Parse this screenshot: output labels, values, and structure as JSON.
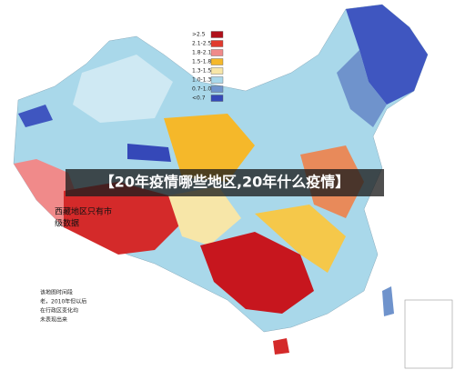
{
  "legend": {
    "items": [
      {
        "label": ">2.5",
        "color": "#b0101a"
      },
      {
        "label": "2.1-2.5",
        "color": "#e03a2e"
      },
      {
        "label": "1.8-2.1",
        "color": "#f08a8a"
      },
      {
        "label": "1.5-1.8",
        "color": "#f5b82a"
      },
      {
        "label": "1.3-1.5",
        "color": "#f7e6a8"
      },
      {
        "label": "1.0-1.3",
        "color": "#a9d8ea"
      },
      {
        "label": "0.7-1.0",
        "color": "#6f93cc"
      },
      {
        "label": "<0.7",
        "color": "#3548b8"
      }
    ]
  },
  "banner": {
    "title": "【20年疫情哪些地区,20年什么疫情】"
  },
  "annotation": {
    "lines": [
      "西藏地区只有市",
      "级数据"
    ]
  },
  "note": {
    "lines": [
      "该地图时间段",
      "老，2010年但以后",
      "在行政区变化均",
      "未表现出来"
    ]
  }
}
